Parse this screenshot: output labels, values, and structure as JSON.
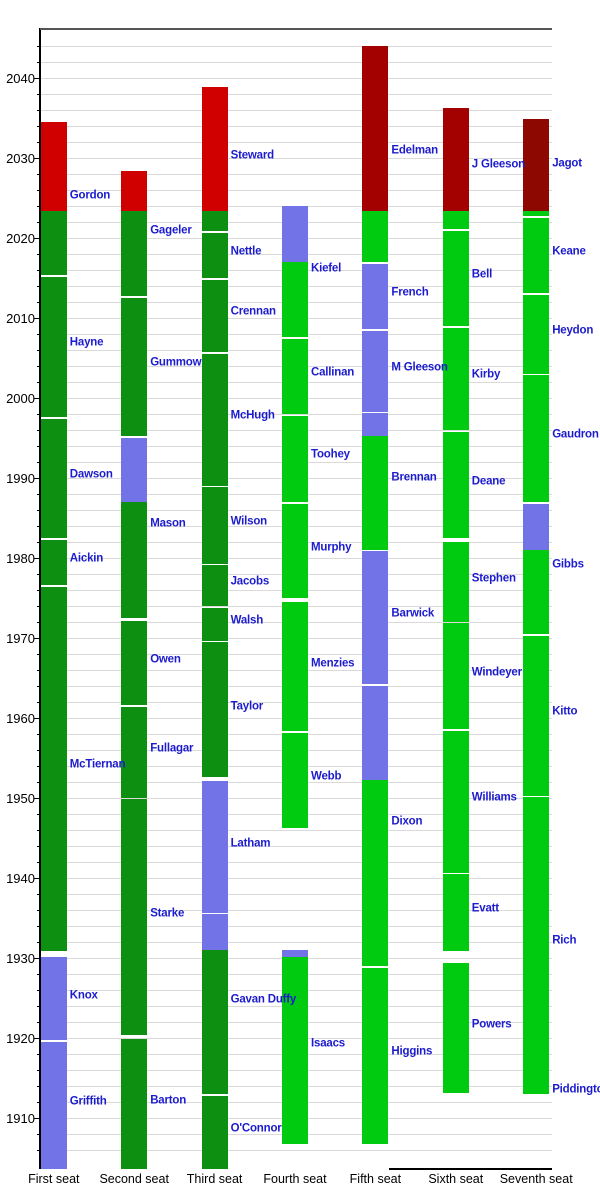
{
  "colors": {
    "green_dark": "#0D9011",
    "green_bright": "#00CB11",
    "blue": "#7273E6",
    "red_bright": "#D10000",
    "red_dark": "#A30000",
    "red_maroon": "#8C0800",
    "name_text": "#1C1CCE",
    "axis_text": "#000000",
    "gridline": "#DADADA",
    "axis_line": "#000000",
    "top_border": "#555555"
  },
  "chart_data": {
    "type": "bar",
    "subtype": "vertical-timeline-gantt",
    "title": "",
    "xlabel": "",
    "ylabel": "",
    "ylim": [
      1903.4,
      2046.5
    ],
    "grid": "horizontal, every 2 years",
    "legend": null,
    "y_axis": {
      "tick_interval": 10,
      "minor_interval": 2,
      "tick_labels": [
        "1910",
        "1920",
        "1930",
        "1940",
        "1950",
        "1960",
        "1970",
        "1980",
        "1990",
        "2000",
        "2010",
        "2020",
        "2030",
        "2040"
      ]
    },
    "x_categories": [
      "First seat",
      "Second seat",
      "Third seat",
      "Fourth seat",
      "Fifth seat",
      "Sixth seat",
      "Seventh seat"
    ],
    "now_year": 2023.5,
    "series": [
      {
        "category": "First seat",
        "justices": [
          {
            "name": "Griffith",
            "segments": [
              {
                "from": 1903.75,
                "to": 1919.79,
                "color": "blue"
              }
            ]
          },
          {
            "name": "Knox",
            "segments": [
              {
                "from": 1919.81,
                "to": 1930.24,
                "color": "blue"
              }
            ]
          },
          {
            "name": "McTiernan",
            "segments": [
              {
                "from": 1930.97,
                "to": 1976.7,
                "color": "green_dark"
              }
            ]
          },
          {
            "name": "Aickin",
            "segments": [
              {
                "from": 1976.72,
                "to": 1982.46,
                "color": "green_dark"
              }
            ]
          },
          {
            "name": "Dawson",
            "segments": [
              {
                "from": 1982.58,
                "to": 1997.7,
                "color": "green_dark"
              }
            ]
          },
          {
            "name": "Hayne",
            "segments": [
              {
                "from": 1997.72,
                "to": 2015.44,
                "color": "green_dark"
              }
            ]
          },
          {
            "name": "Gordon",
            "segments": [
              {
                "from": 2015.46,
                "to": 2023.5,
                "color": "green_dark"
              },
              {
                "from": 2023.5,
                "to": 2034.6,
                "color": "red_bright"
              }
            ]
          }
        ]
      },
      {
        "category": "Second seat",
        "justices": [
          {
            "name": "Barton",
            "segments": [
              {
                "from": 1903.75,
                "to": 1920.02,
                "color": "green_dark"
              }
            ]
          },
          {
            "name": "Starke",
            "segments": [
              {
                "from": 1920.44,
                "to": 1950.08,
                "color": "green_dark"
              }
            ]
          },
          {
            "name": "Fullagar",
            "segments": [
              {
                "from": 1950.11,
                "to": 1961.52,
                "color": "green_dark"
              }
            ]
          },
          {
            "name": "Owen",
            "segments": [
              {
                "from": 1961.73,
                "to": 1972.28,
                "color": "green_dark"
              }
            ]
          },
          {
            "name": "Mason",
            "segments": [
              {
                "from": 1972.6,
                "to": 1987.09,
                "color": "green_dark"
              },
              {
                "from": 1987.09,
                "to": 1995.3,
                "color": "blue"
              }
            ]
          },
          {
            "name": "Gummow",
            "segments": [
              {
                "from": 1995.31,
                "to": 2012.77,
                "color": "green_dark"
              }
            ]
          },
          {
            "name": "Gageler",
            "segments": [
              {
                "from": 2012.79,
                "to": 2023.5,
                "color": "green_dark"
              },
              {
                "from": 2023.5,
                "to": 2028.5,
                "color": "red_bright"
              }
            ]
          }
        ]
      },
      {
        "category": "Third seat",
        "justices": [
          {
            "name": "O'Connor",
            "segments": [
              {
                "from": 1903.75,
                "to": 1912.88,
                "color": "green_dark"
              }
            ]
          },
          {
            "name": "Gavan Duffy",
            "segments": [
              {
                "from": 1913.09,
                "to": 1931.06,
                "color": "green_dark"
              },
              {
                "from": 1931.06,
                "to": 1935.75,
                "color": "blue"
              }
            ]
          },
          {
            "name": "Latham",
            "segments": [
              {
                "from": 1935.78,
                "to": 1952.27,
                "color": "blue"
              }
            ]
          },
          {
            "name": "Taylor",
            "segments": [
              {
                "from": 1952.67,
                "to": 1969.64,
                "color": "green_dark"
              }
            ]
          },
          {
            "name": "Walsh",
            "segments": [
              {
                "from": 1969.75,
                "to": 1973.91,
                "color": "green_dark"
              }
            ]
          },
          {
            "name": "Jacobs",
            "segments": [
              {
                "from": 1974.1,
                "to": 1979.27,
                "color": "green_dark"
              }
            ]
          },
          {
            "name": "Wilson",
            "segments": [
              {
                "from": 1979.38,
                "to": 1989.11,
                "color": "green_dark"
              }
            ]
          },
          {
            "name": "McHugh",
            "segments": [
              {
                "from": 1989.12,
                "to": 2005.83,
                "color": "green_dark"
              }
            ]
          },
          {
            "name": "Crennan",
            "segments": [
              {
                "from": 2005.85,
                "to": 2015.09,
                "color": "green_dark"
              }
            ]
          },
          {
            "name": "Nettle",
            "segments": [
              {
                "from": 2015.1,
                "to": 2020.91,
                "color": "green_dark"
              }
            ]
          },
          {
            "name": "Steward",
            "segments": [
              {
                "from": 2020.92,
                "to": 2023.5,
                "color": "green_dark"
              },
              {
                "from": 2023.5,
                "to": 2039.0,
                "color": "red_bright"
              }
            ]
          }
        ]
      },
      {
        "category": "Fourth seat",
        "justices": [
          {
            "name": "Isaacs",
            "segments": [
              {
                "from": 1906.9,
                "to": 1930.25,
                "color": "green_bright"
              },
              {
                "from": 1930.25,
                "to": 1931.06,
                "color": "blue"
              }
            ]
          },
          {
            "name": "Webb",
            "segments": [
              {
                "from": 1946.37,
                "to": 1958.37,
                "color": "green_bright"
              }
            ]
          },
          {
            "name": "Menzies",
            "segments": [
              {
                "from": 1958.45,
                "to": 1974.57,
                "color": "green_bright"
              }
            ]
          },
          {
            "name": "Murphy",
            "segments": [
              {
                "from": 1975.11,
                "to": 1986.8,
                "color": "green_bright"
              }
            ]
          },
          {
            "name": "Toohey",
            "segments": [
              {
                "from": 1987.1,
                "to": 1998.09,
                "color": "green_bright"
              }
            ]
          },
          {
            "name": "Callinan",
            "segments": [
              {
                "from": 1998.1,
                "to": 2007.66,
                "color": "green_bright"
              }
            ]
          },
          {
            "name": "Kiefel",
            "segments": [
              {
                "from": 2007.67,
                "to": 2017.08,
                "color": "green_bright"
              },
              {
                "from": 2017.08,
                "to": 2024.05,
                "color": "blue"
              }
            ]
          }
        ]
      },
      {
        "category": "Fifth seat",
        "justices": [
          {
            "name": "Higgins",
            "segments": [
              {
                "from": 1906.9,
                "to": 1929.04,
                "color": "green_bright"
              }
            ]
          },
          {
            "name": "Dixon",
            "segments": [
              {
                "from": 1929.09,
                "to": 1952.3,
                "color": "green_bright"
              },
              {
                "from": 1952.3,
                "to": 1964.28,
                "color": "blue"
              }
            ]
          },
          {
            "name": "Barwick",
            "segments": [
              {
                "from": 1964.32,
                "to": 1981.11,
                "color": "blue"
              }
            ]
          },
          {
            "name": "Brennan",
            "segments": [
              {
                "from": 1981.12,
                "to": 1995.3,
                "color": "green_bright"
              },
              {
                "from": 1995.3,
                "to": 1998.39,
                "color": "blue"
              }
            ]
          },
          {
            "name": "M Gleeson",
            "segments": [
              {
                "from": 1998.4,
                "to": 2008.66,
                "color": "blue"
              }
            ]
          },
          {
            "name": "French",
            "segments": [
              {
                "from": 2008.67,
                "to": 2017.08,
                "color": "blue"
              }
            ]
          },
          {
            "name": "Edelman",
            "segments": [
              {
                "from": 2017.1,
                "to": 2023.5,
                "color": "green_bright"
              },
              {
                "from": 2023.5,
                "to": 2044.05,
                "color": "red_dark"
              }
            ]
          }
        ]
      },
      {
        "category": "Sixth seat",
        "justices": [
          {
            "name": "Powers",
            "segments": [
              {
                "from": 1913.18,
                "to": 1929.46,
                "color": "green_bright"
              }
            ]
          },
          {
            "name": "Evatt",
            "segments": [
              {
                "from": 1930.97,
                "to": 1940.66,
                "color": "green_bright"
              }
            ]
          },
          {
            "name": "Williams",
            "segments": [
              {
                "from": 1940.75,
                "to": 1958.65,
                "color": "green_bright"
              }
            ]
          },
          {
            "name": "Windeyer",
            "segments": [
              {
                "from": 1958.69,
                "to": 1972.12,
                "color": "green_bright"
              }
            ]
          },
          {
            "name": "Stephen",
            "segments": [
              {
                "from": 1972.16,
                "to": 1982.14,
                "color": "green_bright"
              }
            ]
          },
          {
            "name": "Deane",
            "segments": [
              {
                "from": 1982.57,
                "to": 1995.85,
                "color": "green_bright"
              }
            ]
          },
          {
            "name": "Kirby",
            "segments": [
              {
                "from": 1996.1,
                "to": 2009.09,
                "color": "green_bright"
              }
            ]
          },
          {
            "name": "Bell",
            "segments": [
              {
                "from": 2009.1,
                "to": 2021.16,
                "color": "green_bright"
              }
            ]
          },
          {
            "name": "J Gleeson",
            "segments": [
              {
                "from": 2021.18,
                "to": 2023.5,
                "color": "green_bright"
              },
              {
                "from": 2023.5,
                "to": 2036.4,
                "color": "red_dark"
              }
            ]
          }
        ]
      },
      {
        "category": "Seventh seat",
        "justices": [
          {
            "name": "Piddington",
            "segments": [
              {
                "from": 1913.18,
                "to": 1913.26,
                "color": "green_bright"
              }
            ],
            "label_y": 1090
          },
          {
            "name": "Rich",
            "segments": [
              {
                "from": 1913.26,
                "to": 1950.35,
                "color": "green_bright"
              }
            ],
            "no_gap_below": true
          },
          {
            "name": "Kitto",
            "segments": [
              {
                "from": 1950.37,
                "to": 1970.58,
                "color": "green_bright"
              }
            ]
          },
          {
            "name": "Gibbs",
            "segments": [
              {
                "from": 1970.6,
                "to": 1981.1,
                "color": "green_bright"
              },
              {
                "from": 1981.1,
                "to": 1987.09,
                "color": "blue"
              }
            ]
          },
          {
            "name": "Gaudron",
            "segments": [
              {
                "from": 1987.1,
                "to": 2003.09,
                "color": "green_bright"
              }
            ]
          },
          {
            "name": "Heydon",
            "segments": [
              {
                "from": 2003.11,
                "to": 2013.15,
                "color": "green_bright"
              }
            ]
          },
          {
            "name": "Keane",
            "segments": [
              {
                "from": 2013.17,
                "to": 2022.81,
                "color": "green_bright"
              }
            ]
          },
          {
            "name": "Jagot",
            "segments": [
              {
                "from": 2022.83,
                "to": 2023.5,
                "color": "green_bright"
              },
              {
                "from": 2023.5,
                "to": 2035.0,
                "color": "red_maroon"
              }
            ]
          }
        ]
      }
    ]
  }
}
